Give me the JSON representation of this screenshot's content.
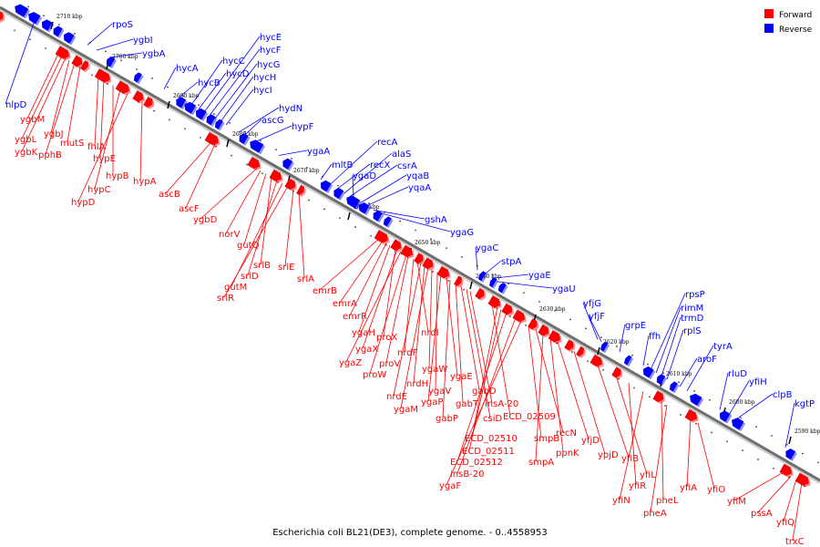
{
  "caption": "Escherichia coli BL21(DE3), complete genome. - 0..4558953",
  "legend": [
    {
      "label": "Forward",
      "color": "#ff0000"
    },
    {
      "label": "Reverse",
      "color": "#0000ff"
    }
  ],
  "ticks": [
    "2710 kbp",
    "2700 kbp",
    "2690 kbp",
    "2680 kbp",
    "2670 kbp",
    "2660 kbp",
    "2650 kbp",
    "2640 kbp",
    "2630 kbp",
    "2620 kbp",
    "2610 kbp",
    "2600 kbp",
    "2590 kbp"
  ],
  "genes_reverse": [
    "rpoS",
    "ygbI",
    "ygbA",
    "nlpD",
    "hycA",
    "hycB",
    "hycC",
    "hycD",
    "hycE",
    "hycF",
    "hycG",
    "hycH",
    "hycI",
    "hydN",
    "ascG",
    "hypF",
    "ygaA",
    "mltB",
    "recA",
    "recX",
    "alaS",
    "csrA",
    "ygaD",
    "yqaB",
    "yqaA",
    "gshA",
    "ygaG",
    "ygaC",
    "stpA",
    "ygaE",
    "ygaU",
    "yfjG",
    "yfjF",
    "grpE",
    "ffh",
    "rpsP",
    "rimM",
    "trmD",
    "rplS",
    "aroF",
    "tyrA",
    "rluD",
    "yfiH",
    "clpB",
    "kgtP"
  ],
  "genes_forward": [
    "ygbM",
    "ygbL",
    "ygbK",
    "ygbJ",
    "pphB",
    "mutS",
    "fhlA",
    "hypE",
    "hypB",
    "hypC",
    "hypD",
    "hypA",
    "ascB",
    "ascF",
    "ygbD",
    "norV",
    "gutQ",
    "srlB",
    "srlD",
    "gutM",
    "srlR",
    "srlE",
    "srlA",
    "emrB",
    "emrA",
    "emrR",
    "ygaH",
    "proX",
    "ygaX",
    "ygaZ",
    "proW",
    "proV",
    "nrdF",
    "nrdI",
    "nrdE",
    "nrdH",
    "ygaM",
    "ygaW",
    "ygaV",
    "ygaP",
    "ygaE",
    "gabP",
    "gabT",
    "gabD",
    "csiD",
    "insA-20",
    "ECD_02509",
    "ECD_02510",
    "ECD_02511",
    "ECD_02512",
    "insB-20",
    "ygaF",
    "smpB",
    "recN",
    "smpA",
    "ppnK",
    "yfjD",
    "ypjD",
    "yfiB",
    "yfiL",
    "yfiR",
    "yfiN",
    "pheL",
    "pheA",
    "yfiA",
    "yfiO",
    "yfiM",
    "pssA",
    "yfiQ",
    "trxC"
  ]
}
